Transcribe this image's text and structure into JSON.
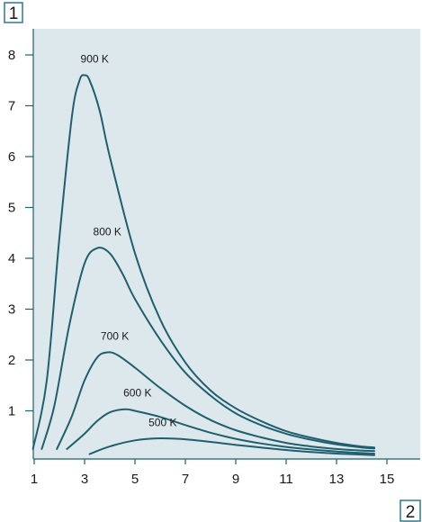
{
  "corner_labels": {
    "top_left": "1",
    "bottom_right": "2"
  },
  "colors": {
    "plot_background": "#dde8ec",
    "curve": "#1f5f6e",
    "axis": "#1f5f6e",
    "corner_box_border": "#2a7a8c",
    "text": "#1a1a1a"
  },
  "chart_data": {
    "type": "line",
    "title": "",
    "xlabel": "",
    "ylabel": "",
    "xlim": [
      0,
      15
    ],
    "ylim": [
      0,
      8.5
    ],
    "grid": false,
    "x_ticks": [
      1,
      3,
      5,
      7,
      9,
      11,
      13,
      15
    ],
    "x_tick_labels": [
      "1",
      "3",
      "5",
      "7",
      "9",
      "11",
      "13",
      "15"
    ],
    "y_ticks": [
      1,
      2,
      3,
      4,
      5,
      6,
      7,
      8
    ],
    "y_tick_labels": [
      "1",
      "2",
      "3",
      "4",
      "5",
      "6",
      "7",
      "8"
    ],
    "series": [
      {
        "name": "900 K",
        "x": [
          0.95,
          1.5,
          2.0,
          2.5,
          2.8,
          3.0,
          3.2,
          3.6,
          4.0,
          5.0,
          6.0,
          7.0,
          8.0,
          9.0,
          10.0,
          11.0,
          12.0,
          13.0,
          14.0,
          14.5
        ],
        "y": [
          0.25,
          1.6,
          4.4,
          6.8,
          7.5,
          7.6,
          7.5,
          6.9,
          6.0,
          4.1,
          2.8,
          1.95,
          1.4,
          1.05,
          0.8,
          0.6,
          0.47,
          0.37,
          0.3,
          0.28
        ]
      },
      {
        "name": "800 K",
        "x": [
          1.3,
          1.8,
          2.4,
          3.0,
          3.5,
          4.0,
          4.5,
          5.0,
          6.0,
          7.0,
          8.0,
          9.0,
          10.0,
          11.0,
          12.0,
          13.0,
          14.0,
          14.5
        ],
        "y": [
          0.25,
          1.1,
          2.7,
          3.9,
          4.2,
          4.1,
          3.7,
          3.2,
          2.4,
          1.75,
          1.3,
          0.95,
          0.72,
          0.55,
          0.43,
          0.34,
          0.28,
          0.26
        ]
      },
      {
        "name": "700 K",
        "x": [
          1.9,
          2.5,
          3.0,
          3.5,
          3.9,
          4.3,
          5.0,
          6.0,
          7.0,
          8.0,
          9.0,
          10.0,
          11.0,
          12.0,
          13.0,
          14.0,
          14.5
        ],
        "y": [
          0.25,
          0.9,
          1.6,
          2.05,
          2.15,
          2.1,
          1.85,
          1.45,
          1.1,
          0.82,
          0.62,
          0.48,
          0.37,
          0.3,
          0.25,
          0.22,
          0.21
        ]
      },
      {
        "name": "600 K",
        "x": [
          2.3,
          3.0,
          3.5,
          4.0,
          4.6,
          5.0,
          6.0,
          7.0,
          8.0,
          9.0,
          10.0,
          11.0,
          12.0,
          13.0,
          14.0,
          14.5
        ],
        "y": [
          0.25,
          0.55,
          0.8,
          0.97,
          1.03,
          1.0,
          0.88,
          0.72,
          0.57,
          0.45,
          0.36,
          0.29,
          0.24,
          0.2,
          0.17,
          0.16
        ]
      },
      {
        "name": "500 K",
        "x": [
          3.2,
          4.0,
          5.0,
          6.0,
          7.0,
          8.0,
          9.0,
          10.0,
          11.0,
          12.0,
          13.0,
          14.0,
          14.5
        ],
        "y": [
          0.15,
          0.3,
          0.42,
          0.46,
          0.44,
          0.39,
          0.33,
          0.28,
          0.23,
          0.19,
          0.16,
          0.14,
          0.13
        ]
      }
    ],
    "annotations": [
      {
        "text": "900 K",
        "series": "900 K",
        "x": 3.4,
        "y": 7.85
      },
      {
        "text": "800 K",
        "series": "800 K",
        "x": 3.9,
        "y": 4.45
      },
      {
        "text": "700 K",
        "series": "700 K",
        "x": 4.2,
        "y": 2.4
      },
      {
        "text": "600 K",
        "series": "600 K",
        "x": 5.1,
        "y": 1.28
      },
      {
        "text": "500 K",
        "series": "500 K",
        "x": 6.1,
        "y": 0.7
      }
    ]
  }
}
